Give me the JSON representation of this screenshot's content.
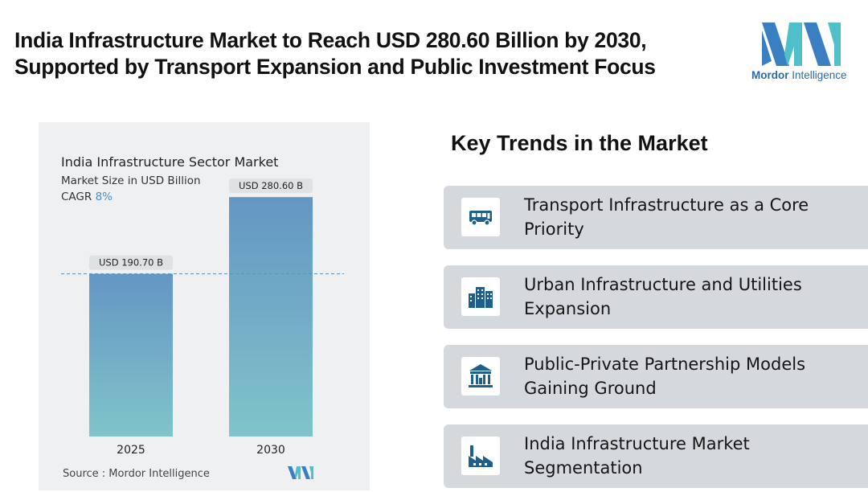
{
  "headline": {
    "line1": "India Infrastructure Market to Reach USD 280.60 Billion by 2030,",
    "line2": "Supported by Transport Expansion and Public Investment Focus"
  },
  "logo": {
    "brand_bold": "Mordor",
    "brand_rest": " Intelligence",
    "colors": [
      "#3a7fc1",
      "#4fc0c9"
    ]
  },
  "chart_panel": {
    "title": "India Infrastructure Sector Market",
    "subtitle": "Market Size in USD Billion",
    "cagr_label": "CAGR",
    "cagr_value": "8%",
    "source": "Source :  Mordor Intelligence"
  },
  "chart_data": {
    "type": "bar",
    "categories": [
      "2025",
      "2030"
    ],
    "values": [
      190.7,
      280.6
    ],
    "data_labels": [
      "USD 190.70 B",
      "USD 280.60 B"
    ],
    "title": "India Infrastructure Sector Market",
    "ylabel": "Market Size in USD Billion",
    "ylim": [
      0,
      300
    ],
    "reference_line": 190.7,
    "grid": false,
    "bar_gradient": [
      "#6496c3",
      "#80c4ca"
    ]
  },
  "trends": {
    "title": "Key Trends in the Market",
    "items": [
      {
        "label": "Transport Infrastructure as a Core Priority",
        "icon": "bus-icon"
      },
      {
        "label": "Urban Infrastructure and Utilities Expansion",
        "icon": "buildings-icon"
      },
      {
        "label": "Public-Private Partnership Models Gaining Ground",
        "icon": "government-building-icon"
      },
      {
        "label": "India Infrastructure Market Segmentation",
        "icon": "factory-icon"
      }
    ],
    "icon_color": "#1f5f8b"
  }
}
